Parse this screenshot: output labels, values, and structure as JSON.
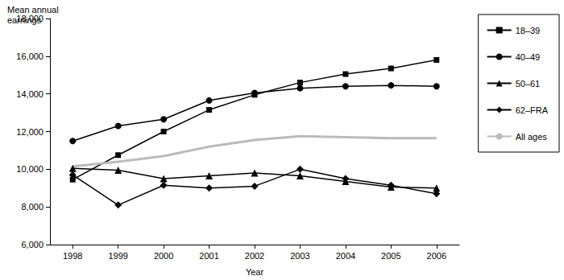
{
  "chart_data": {
    "type": "line",
    "title": "Mean annual earnings",
    "x_label": "Year",
    "categories": [
      "1998",
      "1999",
      "2000",
      "2001",
      "2002",
      "2003",
      "2004",
      "2005",
      "2006"
    ],
    "series": [
      {
        "name": "18–39",
        "color": "#000000",
        "marker": "square",
        "line_style": "solid",
        "values": [
          9450,
          10750,
          12000,
          13150,
          13950,
          14600,
          15050,
          15350,
          15800
        ]
      },
      {
        "name": "40–49",
        "color": "#000000",
        "marker": "circle",
        "line_style": "solid",
        "values": [
          11500,
          12300,
          12650,
          13650,
          14050,
          14300,
          14400,
          14450,
          14400
        ]
      },
      {
        "name": "50–61",
        "color": "#000000",
        "marker": "triangle",
        "line_style": "solid",
        "values": [
          10050,
          9950,
          9500,
          9650,
          9800,
          9650,
          9350,
          9050,
          9000
        ]
      },
      {
        "name": "62–FRA",
        "color": "#000000",
        "marker": "diamond",
        "line_style": "solid",
        "values": [
          9700,
          8100,
          9150,
          9000,
          9100,
          10000,
          9500,
          9150,
          8700
        ]
      },
      {
        "name": "All ages",
        "color": "#bbbbbb",
        "marker": "none",
        "line_style": "solid",
        "values": [
          10150,
          10400,
          10700,
          11200,
          11550,
          11750,
          11700,
          11650,
          11650
        ]
      }
    ],
    "ylim": [
      6000,
      18000
    ],
    "yticks": [
      {
        "value": 6000,
        "label": "6,000"
      },
      {
        "value": 8000,
        "label": "8,000"
      },
      {
        "value": 10000,
        "label": "10,000"
      },
      {
        "value": 12000,
        "label": "12,000"
      },
      {
        "value": 14000,
        "label": "14,000"
      },
      {
        "value": 16000,
        "label": "16,000"
      },
      {
        "value": 18000,
        "label": "18,000"
      }
    ],
    "grid": false,
    "legend": "right",
    "data_labels": false
  }
}
